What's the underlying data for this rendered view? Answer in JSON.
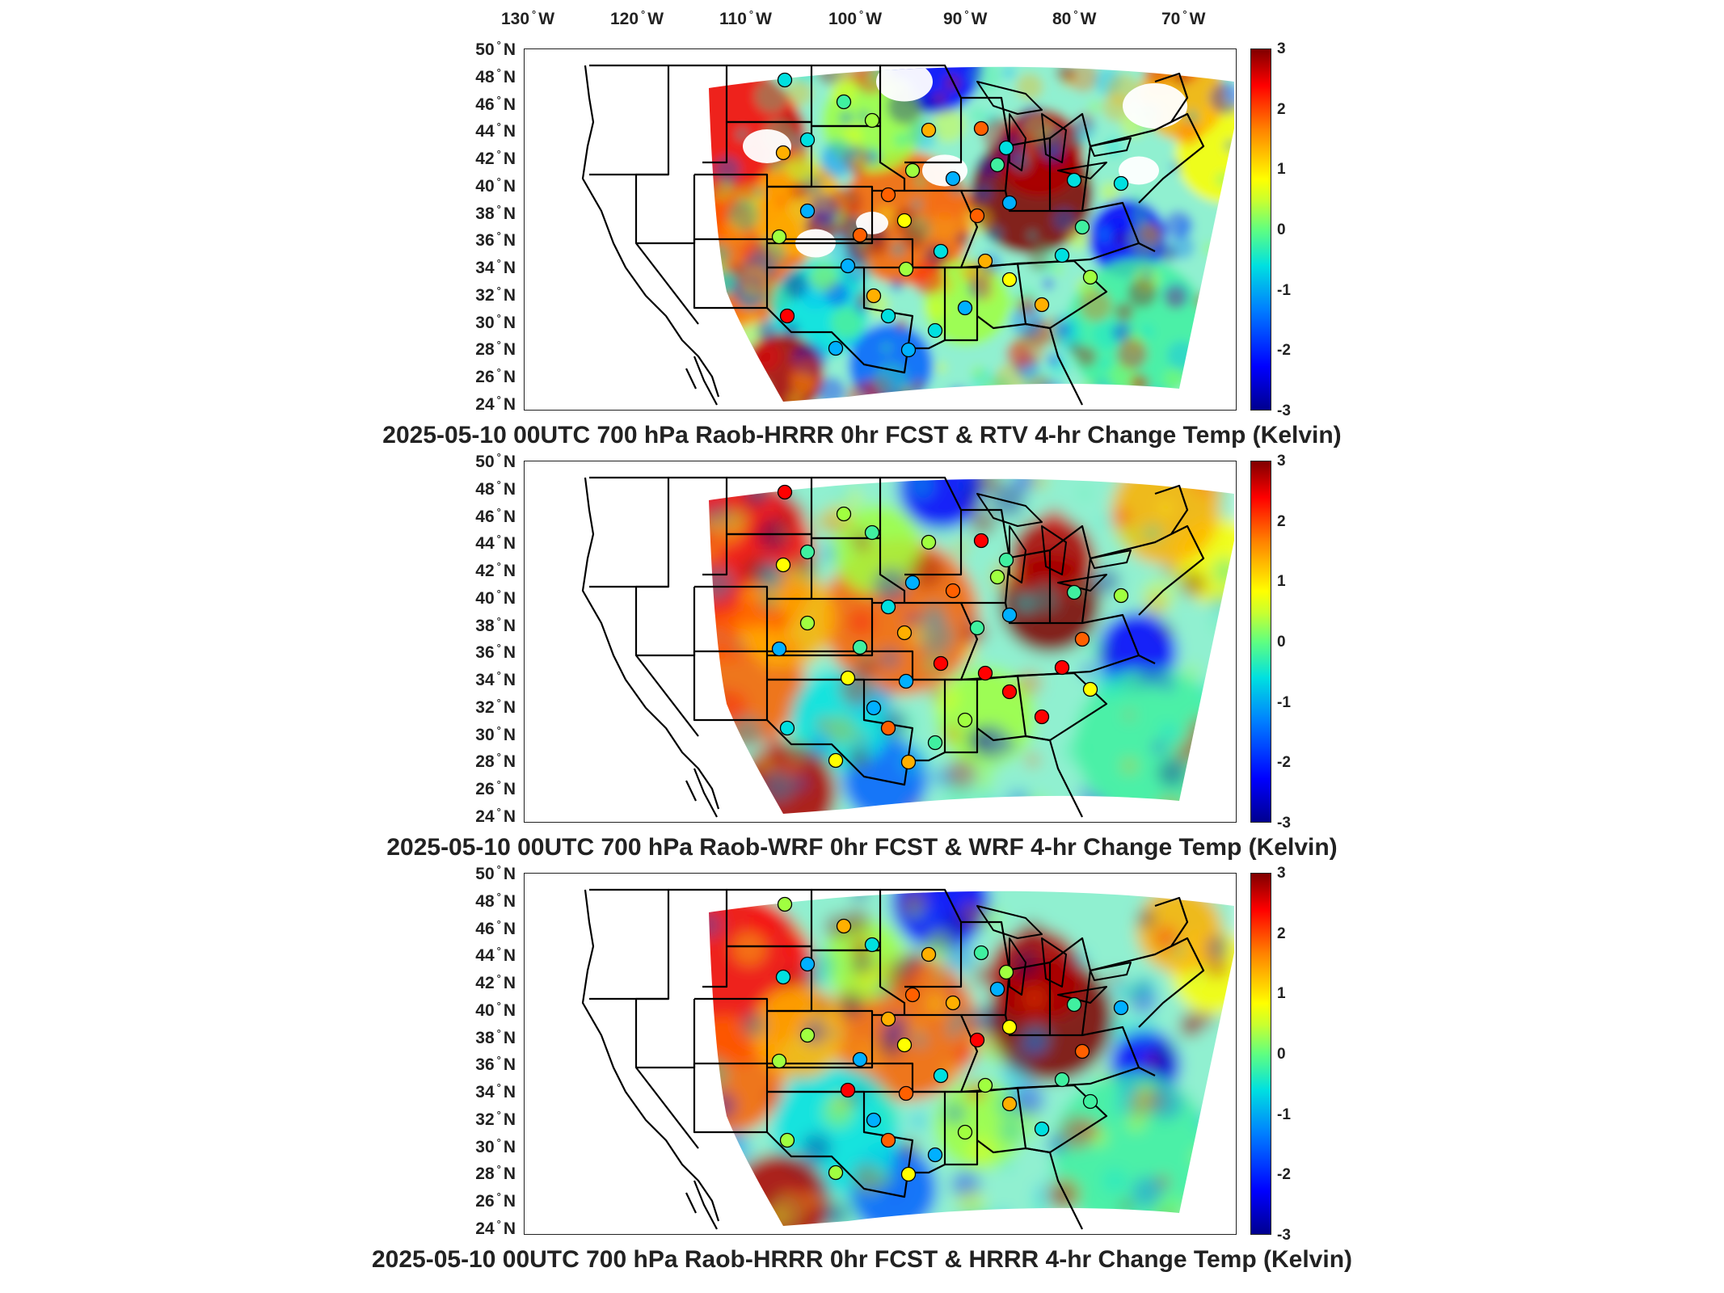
{
  "longitude_labels": [
    {
      "value": "130",
      "hem": "W"
    },
    {
      "value": "120",
      "hem": "W"
    },
    {
      "value": "110",
      "hem": "W"
    },
    {
      "value": "100",
      "hem": "W"
    },
    {
      "value": "90",
      "hem": "W"
    },
    {
      "value": "80",
      "hem": "W"
    },
    {
      "value": "70",
      "hem": "W"
    }
  ],
  "latitude_labels": [
    {
      "value": "50",
      "hem": "N"
    },
    {
      "value": "48",
      "hem": "N"
    },
    {
      "value": "46",
      "hem": "N"
    },
    {
      "value": "44",
      "hem": "N"
    },
    {
      "value": "42",
      "hem": "N"
    },
    {
      "value": "40",
      "hem": "N"
    },
    {
      "value": "38",
      "hem": "N"
    },
    {
      "value": "36",
      "hem": "N"
    },
    {
      "value": "34",
      "hem": "N"
    },
    {
      "value": "32",
      "hem": "N"
    },
    {
      "value": "30",
      "hem": "N"
    },
    {
      "value": "28",
      "hem": "N"
    },
    {
      "value": "26",
      "hem": "N"
    },
    {
      "value": "24",
      "hem": "N"
    }
  ],
  "colorbar_ticks": [
    "3",
    "2",
    "1",
    "0",
    "-1",
    "-2",
    "-3"
  ],
  "colorbar_colors": {
    "min": "#00008f",
    "zero": "#60ff80",
    "max": "#800000"
  },
  "panels": [
    {
      "title": "2025-05-10 00UTC 700 hPa Raob-HRRR 0hr FCST & RTV 4-hr Change Temp (Kelvin)"
    },
    {
      "title": "2025-05-10 00UTC 700 hPa Raob-WRF 0hr FCST & WRF 4-hr Change Temp (Kelvin)"
    },
    {
      "title": "2025-05-10 00UTC 700 hPa Raob-HRRR 0hr FCST & HRRR 4-hr Change Temp (Kelvin)"
    }
  ]
}
